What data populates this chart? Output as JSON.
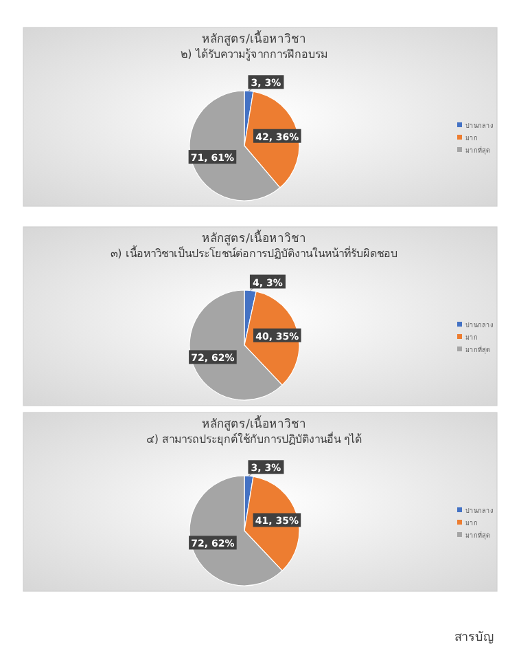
{
  "chart_data": [
    {
      "type": "pie",
      "title": "หลักสูตร/เนื้อหาวิชา",
      "subtitle": "๒) ได้รับความรู้จากการฝึกอบรม",
      "categories": [
        "ปานกลาง",
        "มาก",
        "มากที่สุด"
      ],
      "values": [
        3,
        42,
        71
      ],
      "colors": [
        "#4472c4",
        "#ed7d31",
        "#a5a5a5"
      ],
      "value_labels": [
        "3, 3%",
        "42, 36%",
        "71, 61%"
      ],
      "legend": "right"
    },
    {
      "type": "pie",
      "title": "หลักสูตร/เนื้อหาวิชา",
      "subtitle": "๓) เนื้อหาวิชาเป็นประโยชน์ต่อการปฏิบัติงานในหน้าที่รับผิดชอบ",
      "categories": [
        "ปานกลาง",
        "มาก",
        "มากที่สุด"
      ],
      "values": [
        4,
        40,
        72
      ],
      "colors": [
        "#4472c4",
        "#ed7d31",
        "#a5a5a5"
      ],
      "value_labels": [
        "4, 3%",
        "40, 35%",
        "72, 62%"
      ],
      "legend": "right"
    },
    {
      "type": "pie",
      "title": "หลักสูตร/เนื้อหาวิชา",
      "subtitle": "๔) สามารถประยุกต์ใช้กับการปฏิบัติงานอื่น ๆได้",
      "categories": [
        "ปานกลาง",
        "มาก",
        "มากที่สุด"
      ],
      "values": [
        3,
        41,
        72
      ],
      "colors": [
        "#4472c4",
        "#ed7d31",
        "#a5a5a5"
      ],
      "value_labels": [
        "3, 3%",
        "41, 35%",
        "72, 62%"
      ],
      "legend": "right",
      "annotations": [
        "สารบัญ"
      ]
    }
  ]
}
